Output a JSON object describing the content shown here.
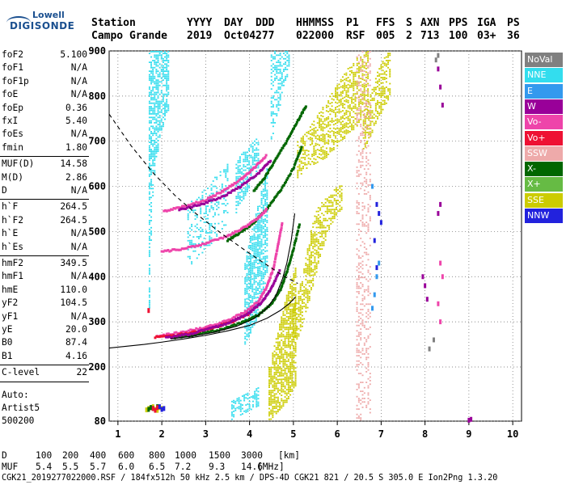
{
  "logo": {
    "line1": "Lowell",
    "line2": "DIGISONDE"
  },
  "header": {
    "labels": [
      "Station",
      "YYYY",
      "DAY",
      "DDD",
      "HHMMSS",
      "P1",
      "FFS",
      "S",
      "AXN",
      "PPS",
      "IGA",
      "PS"
    ],
    "values": [
      "Campo Grande",
      "2019",
      "Oct04",
      "277",
      "022000",
      "RSF",
      "005",
      "2",
      "713",
      "100",
      "03+",
      "36"
    ]
  },
  "params": [
    {
      "name": "foF2",
      "value": "5.100"
    },
    {
      "name": "foF1",
      "value": "N/A"
    },
    {
      "name": "foF1p",
      "value": "N/A"
    },
    {
      "name": "foE",
      "value": "N/A"
    },
    {
      "name": "foEp",
      "value": "0.36"
    },
    {
      "name": "fxI",
      "value": "5.40"
    },
    {
      "name": "foEs",
      "value": "N/A"
    },
    {
      "name": "fmin",
      "value": "1.80"
    },
    {
      "name": "MUF(D)",
      "value": "14.58"
    },
    {
      "name": "M(D)",
      "value": "2.86"
    },
    {
      "name": "D",
      "value": "N/A"
    },
    {
      "name": "h`F",
      "value": "264.5"
    },
    {
      "name": "h`F2",
      "value": "264.5"
    },
    {
      "name": "h`E",
      "value": "N/A"
    },
    {
      "name": "h`Es",
      "value": "N/A"
    },
    {
      "name": "hmF2",
      "value": "349.5"
    },
    {
      "name": "hmF1",
      "value": "N/A"
    },
    {
      "name": "hmE",
      "value": "110.0"
    },
    {
      "name": "yF2",
      "value": "104.5"
    },
    {
      "name": "yF1",
      "value": "N/A"
    },
    {
      "name": "yE",
      "value": "20.0"
    },
    {
      "name": "B0",
      "value": "87.4"
    },
    {
      "name": "B1",
      "value": "4.16"
    },
    {
      "name": "C-level",
      "value": "22"
    }
  ],
  "side": {
    "auto_label": "Auto:",
    "artist": "Artist5",
    "version": "500200"
  },
  "legend": [
    {
      "label": "NoVal",
      "color": "#808080"
    },
    {
      "label": "NNE",
      "color": "#33ddee"
    },
    {
      "label": "E",
      "color": "#3399ee"
    },
    {
      "label": "W",
      "color": "#990099"
    },
    {
      "label": "Vo-",
      "color": "#ee44aa"
    },
    {
      "label": "Vo+",
      "color": "#ee1133"
    },
    {
      "label": "SSW",
      "color": "#eeaaaa"
    },
    {
      "label": "X-",
      "color": "#006600"
    },
    {
      "label": "X+",
      "color": "#66bb44"
    },
    {
      "label": "SSE",
      "color": "#cccc00"
    },
    {
      "label": "NNW",
      "color": "#2222dd"
    }
  ],
  "footer": {
    "d_label": "D",
    "d_values": [
      "100",
      "200",
      "400",
      "600",
      "800",
      "1000",
      "1500",
      "3000"
    ],
    "d_unit": "[km]",
    "muf_label": "MUF",
    "muf_values": [
      "5.4",
      "5.5",
      "5.7",
      "6.0",
      "6.5",
      "7.2",
      "9.3",
      "14.6"
    ],
    "muf_unit": "[MHz]",
    "status_line": "CGK21_2019277022000.RSF / 184fx512h 50 kHz 2.5 km / DPS-4D CGK21 821 / 20.5 S 305.0 E Ion2Png 1.3.20"
  },
  "chart_data": {
    "type": "scatter",
    "title": "",
    "xlabel": "",
    "ylabel": "",
    "xlim": [
      0.8,
      10.2
    ],
    "ylim": [
      80,
      900
    ],
    "x_ticks": [
      1,
      2,
      3,
      4,
      5,
      6,
      7,
      8,
      9,
      10
    ],
    "y_ticks": [
      80,
      200,
      300,
      400,
      500,
      600,
      700,
      800,
      900
    ],
    "grid": true,
    "legend_position": "right",
    "series": [
      {
        "color": "#33ddee",
        "kind": "band",
        "x": [
          1.72,
          1.78,
          1.84,
          1.9,
          1.95,
          2.0,
          2.05,
          2.1,
          2.15
        ],
        "y_low": [
          330,
          560,
          620,
          660,
          700,
          720,
          740,
          760,
          770
        ],
        "y_high": [
          900,
          900,
          900,
          900,
          900,
          900,
          900,
          900,
          900
        ],
        "density": 0.6
      },
      {
        "color": "#33ddee",
        "kind": "band",
        "x": [
          2.6,
          2.7,
          2.8,
          2.9,
          3.0,
          3.1,
          3.2,
          3.3,
          3.4,
          3.5
        ],
        "y_low": [
          420,
          430,
          440,
          450,
          460,
          470,
          480,
          490,
          500,
          505
        ],
        "y_high": [
          560,
          570,
          580,
          590,
          600,
          610,
          620,
          630,
          640,
          650
        ],
        "density": 0.25
      },
      {
        "color": "#33ddee",
        "kind": "band",
        "x": [
          3.9,
          3.95,
          4.0,
          4.05,
          4.1,
          4.15,
          4.2,
          4.25,
          4.3,
          4.35,
          4.4
        ],
        "y_low": [
          250,
          260,
          270,
          280,
          290,
          300,
          320,
          340,
          360,
          380,
          400
        ],
        "y_high": [
          430,
          460,
          480,
          500,
          520,
          540,
          560,
          580,
          600,
          620,
          640
        ],
        "density": 0.7
      },
      {
        "color": "#33ddee",
        "kind": "band",
        "x": [
          3.7,
          3.8,
          3.9,
          4.0,
          4.1,
          4.2
        ],
        "y_low": [
          540,
          560,
          580,
          600,
          620,
          640
        ],
        "y_high": [
          650,
          670,
          680,
          690,
          700,
          710
        ],
        "density": 0.6
      },
      {
        "color": "#33ddee",
        "kind": "band",
        "x": [
          3.6,
          3.7,
          3.8,
          3.9,
          4.0,
          4.1,
          4.2
        ],
        "y_low": [
          85,
          90,
          95,
          100,
          105,
          110,
          115
        ],
        "y_high": [
          125,
          130,
          135,
          140,
          145,
          150,
          155
        ],
        "density": 0.55
      },
      {
        "color": "#33ddee",
        "kind": "band",
        "x": [
          4.5,
          4.6,
          4.7,
          4.8,
          4.9
        ],
        "y_low": [
          700,
          740,
          780,
          820,
          860
        ],
        "y_high": [
          900,
          900,
          900,
          900,
          900
        ],
        "density": 0.4
      },
      {
        "color": "#cccc00",
        "kind": "band",
        "x": [
          4.45,
          4.55,
          4.65,
          4.75,
          4.85,
          4.95,
          5.05
        ],
        "y_low": [
          80,
          90,
          100,
          110,
          120,
          140,
          160
        ],
        "y_high": [
          200,
          240,
          280,
          320,
          360,
          390,
          420
        ],
        "density": 0.7
      },
      {
        "color": "#cccc00",
        "kind": "band",
        "x": [
          5.0,
          5.1,
          5.2,
          5.3,
          5.4,
          5.5,
          5.6,
          5.7,
          5.8,
          5.9,
          6.0,
          6.1
        ],
        "y_low": [
          240,
          260,
          290,
          320,
          360,
          400,
          440,
          470,
          500,
          520,
          540,
          550
        ],
        "y_high": [
          330,
          360,
          400,
          450,
          500,
          540,
          560,
          570,
          580,
          590,
          600,
          610
        ],
        "density": 0.55
      },
      {
        "color": "#cccc00",
        "kind": "band",
        "x": [
          5.1,
          5.3,
          5.5,
          5.7,
          5.9,
          6.1,
          6.3,
          6.5,
          6.7
        ],
        "y_low": [
          620,
          640,
          650,
          660,
          680,
          700,
          720,
          740,
          760
        ],
        "y_high": [
          700,
          720,
          750,
          780,
          810,
          840,
          870,
          890,
          900
        ],
        "density": 0.5
      },
      {
        "color": "#cccc00",
        "kind": "band",
        "x": [
          6.6,
          6.7,
          6.8,
          6.9,
          7.0,
          7.1,
          7.2
        ],
        "y_low": [
          680,
          700,
          720,
          740,
          760,
          780,
          800
        ],
        "y_high": [
          760,
          790,
          820,
          850,
          870,
          890,
          900
        ],
        "density": 0.5
      },
      {
        "color": "#eeaaaa",
        "kind": "band",
        "x": [
          6.45,
          6.55,
          6.65,
          6.75
        ],
        "y_low": [
          80,
          85,
          90,
          100
        ],
        "y_high": [
          900,
          900,
          900,
          900
        ],
        "density": 0.28
      },
      {
        "color": "#006600",
        "kind": "line",
        "x": [
          2.3,
          2.8,
          3.3,
          3.8,
          4.2,
          4.5,
          4.7,
          4.85,
          5.0,
          5.15
        ],
        "y": [
          265,
          272,
          282,
          297,
          315,
          340,
          370,
          410,
          460,
          520
        ]
      },
      {
        "color": "#ee44aa",
        "kind": "line",
        "x": [
          1.9,
          2.4,
          3.0,
          3.5,
          3.9,
          4.2,
          4.4,
          4.55,
          4.65,
          4.75
        ],
        "y": [
          268,
          276,
          288,
          303,
          322,
          345,
          378,
          420,
          470,
          520
        ]
      },
      {
        "color": "#ee1133",
        "kind": "line",
        "x": [
          1.85,
          2.3,
          2.8,
          3.2,
          3.6,
          4.0
        ],
        "y": [
          266,
          270,
          278,
          288,
          300,
          318
        ]
      },
      {
        "color": "#990099",
        "kind": "line",
        "x": [
          2.1,
          2.6,
          3.1,
          3.6,
          4.0,
          4.3,
          4.5,
          4.7
        ],
        "y": [
          265,
          272,
          285,
          300,
          320,
          345,
          375,
          415
        ]
      },
      {
        "color": "#006600",
        "kind": "line",
        "x": [
          3.5,
          3.8,
          4.1,
          4.4,
          4.7,
          5.0,
          5.2
        ],
        "y": [
          480,
          498,
          520,
          550,
          590,
          640,
          690
        ]
      },
      {
        "color": "#ee44aa",
        "kind": "line",
        "x": [
          2.0,
          2.5,
          3.0,
          3.5,
          3.9,
          4.2,
          4.4
        ],
        "y": [
          455,
          462,
          474,
          490,
          510,
          530,
          550
        ]
      },
      {
        "color": "#006600",
        "kind": "line",
        "x": [
          4.1,
          4.35,
          4.6,
          4.85,
          5.1,
          5.3
        ],
        "y": [
          590,
          620,
          660,
          700,
          745,
          780
        ]
      },
      {
        "color": "#ee44aa",
        "kind": "line",
        "x": [
          2.05,
          2.5,
          3.0,
          3.4,
          3.8,
          4.1,
          4.4
        ],
        "y": [
          545,
          555,
          570,
          590,
          615,
          640,
          670
        ]
      },
      {
        "color": "#990099",
        "kind": "line",
        "x": [
          2.4,
          2.9,
          3.4,
          3.8,
          4.2,
          4.5
        ],
        "y": [
          548,
          560,
          578,
          600,
          628,
          660
        ]
      },
      {
        "color": "#000000",
        "kind": "curve",
        "x": [
          0.8,
          1.2,
          1.6,
          2.0,
          2.5,
          3.0,
          3.5,
          4.0,
          4.4,
          4.7,
          4.9,
          5.05
        ],
        "y": [
          242,
          246,
          250,
          255,
          262,
          270,
          280,
          292,
          308,
          325,
          340,
          355
        ]
      },
      {
        "color": "#000000",
        "kind": "curve",
        "x": [
          2.2,
          2.7,
          3.2,
          3.7,
          4.1,
          4.4,
          4.6,
          4.75,
          4.85,
          4.95,
          5.03
        ],
        "y": [
          262,
          268,
          277,
          290,
          307,
          330,
          358,
          395,
          430,
          480,
          540
        ]
      },
      {
        "color": "#000000",
        "kind": "dashed",
        "x": [
          0.8,
          1.3,
          1.8,
          2.3,
          2.8,
          3.3,
          3.8,
          4.3,
          4.8,
          5.1
        ],
        "y": [
          760,
          690,
          630,
          580,
          538,
          500,
          465,
          432,
          400,
          385
        ]
      },
      {
        "color": "#2222dd",
        "kind": "points",
        "x": [
          6.9,
          6.95,
          7.0,
          6.85,
          6.9
        ],
        "y": [
          560,
          540,
          520,
          480,
          420
        ]
      },
      {
        "color": "#3399ee",
        "kind": "points",
        "x": [
          6.8,
          6.85,
          6.9,
          6.95,
          6.8
        ],
        "y": [
          330,
          360,
          400,
          430,
          600
        ]
      },
      {
        "color": "#990099",
        "kind": "points",
        "x": [
          7.95,
          8.0,
          8.05,
          8.3,
          8.35,
          8.3,
          8.35,
          8.4
        ],
        "y": [
          400,
          380,
          350,
          540,
          560,
          860,
          820,
          780
        ]
      },
      {
        "color": "#808080",
        "kind": "points",
        "x": [
          8.1,
          8.2,
          8.3,
          8.25
        ],
        "y": [
          240,
          260,
          890,
          880
        ]
      },
      {
        "color": "#ee44aa",
        "kind": "points",
        "x": [
          8.35,
          8.4,
          8.3,
          8.35
        ],
        "y": [
          430,
          400,
          340,
          300
        ]
      },
      {
        "color": "#990099",
        "kind": "points",
        "x": [
          9.0,
          9.05
        ],
        "y": [
          82,
          84
        ]
      },
      {
        "color": "#cccc00",
        "kind": "points",
        "x": [
          1.65,
          1.7,
          1.75,
          1.8,
          1.85,
          1.9,
          1.95,
          2.0
        ],
        "y": [
          105,
          108,
          110,
          112,
          106,
          104,
          110,
          108
        ]
      },
      {
        "color": "#006600",
        "kind": "points",
        "x": [
          1.7,
          1.75,
          1.8,
          1.9
        ],
        "y": [
          106,
          110,
          108,
          112
        ]
      },
      {
        "color": "#ee1133",
        "kind": "points",
        "x": [
          1.8,
          1.85,
          1.9,
          1.7
        ],
        "y": [
          108,
          104,
          110,
          325
        ]
      },
      {
        "color": "#2222dd",
        "kind": "points",
        "x": [
          1.95,
          2.0,
          2.05
        ],
        "y": [
          112,
          106,
          108
        ]
      }
    ]
  }
}
